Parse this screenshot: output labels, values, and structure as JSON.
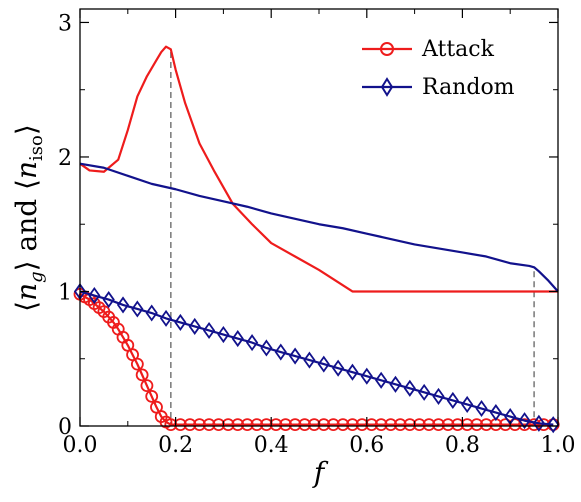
{
  "chart_data": {
    "type": "line",
    "xlabel": "f",
    "ylabel": "⟨n_g⟩ and ⟨n_iso⟩",
    "xlim": [
      0.0,
      1.0
    ],
    "ylim": [
      0,
      3.1
    ],
    "xticks": [
      "0.0",
      "0.2",
      "0.4",
      "0.6",
      "0.8",
      "1.0"
    ],
    "xtick_values": [
      0.0,
      0.2,
      0.4,
      0.6,
      0.8,
      1.0
    ],
    "yticks": [
      "0",
      "1",
      "2",
      "3"
    ],
    "ytick_values": [
      0,
      1,
      2,
      3
    ],
    "legend": {
      "placement": "top-right",
      "entries": [
        "Attack",
        "Random"
      ]
    },
    "grid": false,
    "colors": {
      "attack": "#ee1c1c",
      "random": "#12128c",
      "guide": "#808080"
    },
    "vertical_guides": [
      {
        "x": 0.19,
        "y_top": 2.78
      },
      {
        "x": 0.95,
        "y_top": 1.15
      }
    ],
    "series": [
      {
        "name": "Attack",
        "role": "n_g",
        "marker": "none",
        "x": [
          0.0,
          0.02,
          0.05,
          0.08,
          0.1,
          0.12,
          0.14,
          0.16,
          0.17,
          0.18,
          0.19,
          0.2,
          0.22,
          0.25,
          0.28,
          0.32,
          0.36,
          0.4,
          0.45,
          0.5,
          0.57,
          0.7,
          0.8,
          0.9,
          1.0
        ],
        "y": [
          1.95,
          1.9,
          1.89,
          1.98,
          2.2,
          2.45,
          2.6,
          2.72,
          2.78,
          2.82,
          2.8,
          2.65,
          2.4,
          2.1,
          1.9,
          1.65,
          1.5,
          1.36,
          1.26,
          1.16,
          1.0,
          1.0,
          1.0,
          1.0,
          1.0
        ]
      },
      {
        "name": "Random",
        "role": "n_g",
        "marker": "none",
        "x": [
          0.0,
          0.05,
          0.1,
          0.15,
          0.2,
          0.25,
          0.3,
          0.35,
          0.4,
          0.45,
          0.5,
          0.55,
          0.6,
          0.65,
          0.7,
          0.75,
          0.8,
          0.85,
          0.9,
          0.94,
          0.95,
          0.96,
          0.98,
          1.0
        ],
        "y": [
          1.95,
          1.92,
          1.86,
          1.8,
          1.76,
          1.71,
          1.67,
          1.63,
          1.58,
          1.54,
          1.5,
          1.47,
          1.43,
          1.39,
          1.35,
          1.32,
          1.29,
          1.26,
          1.21,
          1.19,
          1.18,
          1.15,
          1.08,
          1.0
        ]
      },
      {
        "name": "Attack",
        "role": "n_iso",
        "marker": "circle",
        "x": [
          0.0,
          0.01,
          0.02,
          0.03,
          0.04,
          0.05,
          0.06,
          0.07,
          0.08,
          0.09,
          0.1,
          0.11,
          0.12,
          0.13,
          0.14,
          0.15,
          0.16,
          0.17,
          0.18,
          0.19,
          0.21,
          0.23,
          0.25,
          0.27,
          0.29,
          0.31,
          0.33,
          0.35,
          0.37,
          0.39,
          0.41,
          0.43,
          0.45,
          0.47,
          0.49,
          0.51,
          0.53,
          0.55,
          0.57,
          0.59,
          0.61,
          0.63,
          0.65,
          0.67,
          0.69,
          0.71,
          0.73,
          0.75,
          0.77,
          0.79,
          0.81,
          0.83,
          0.85,
          0.87,
          0.89,
          0.91,
          0.93,
          0.95,
          0.97,
          0.99
        ],
        "y": [
          0.98,
          0.96,
          0.94,
          0.91,
          0.88,
          0.85,
          0.81,
          0.77,
          0.72,
          0.66,
          0.6,
          0.53,
          0.46,
          0.38,
          0.3,
          0.22,
          0.14,
          0.07,
          0.03,
          0.01,
          0.01,
          0.01,
          0.01,
          0.01,
          0.01,
          0.01,
          0.01,
          0.01,
          0.01,
          0.01,
          0.01,
          0.01,
          0.01,
          0.01,
          0.01,
          0.01,
          0.01,
          0.01,
          0.01,
          0.01,
          0.01,
          0.01,
          0.01,
          0.01,
          0.01,
          0.01,
          0.01,
          0.01,
          0.01,
          0.01,
          0.01,
          0.01,
          0.01,
          0.01,
          0.01,
          0.01,
          0.01,
          0.01,
          0.01,
          0.01
        ]
      },
      {
        "name": "Random",
        "role": "n_iso",
        "marker": "diamond",
        "x": [
          0.0,
          0.03,
          0.06,
          0.09,
          0.12,
          0.15,
          0.18,
          0.21,
          0.24,
          0.27,
          0.3,
          0.33,
          0.36,
          0.39,
          0.42,
          0.45,
          0.48,
          0.51,
          0.54,
          0.57,
          0.6,
          0.63,
          0.66,
          0.69,
          0.72,
          0.75,
          0.78,
          0.81,
          0.84,
          0.87,
          0.9,
          0.93,
          0.96,
          0.99
        ],
        "y": [
          1.0,
          0.97,
          0.94,
          0.9,
          0.87,
          0.84,
          0.8,
          0.77,
          0.74,
          0.71,
          0.68,
          0.65,
          0.62,
          0.58,
          0.55,
          0.52,
          0.49,
          0.46,
          0.43,
          0.4,
          0.37,
          0.34,
          0.31,
          0.28,
          0.25,
          0.22,
          0.19,
          0.16,
          0.13,
          0.1,
          0.07,
          0.04,
          0.02,
          0.01
        ]
      }
    ]
  }
}
